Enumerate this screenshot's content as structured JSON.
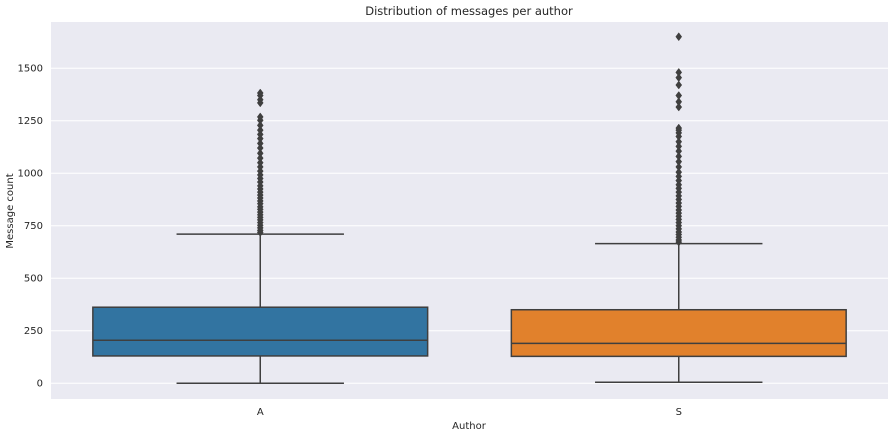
{
  "chart_data": {
    "type": "box",
    "title": "Distribution of messages per author",
    "xlabel": "Author",
    "ylabel": "Message count",
    "ylim": [
      -75,
      1720
    ],
    "yticks": [
      0,
      250,
      500,
      750,
      1000,
      1250,
      1500
    ],
    "grid": true,
    "categories": [
      "A",
      "S"
    ],
    "boxes": [
      {
        "category": "A",
        "color": "#3274a1",
        "whisker_low": 0,
        "q1": 130,
        "median": 205,
        "q3": 362,
        "whisker_high": 710,
        "outliers": [
          718,
          728,
          740,
          752,
          765,
          778,
          790,
          802,
          815,
          828,
          840,
          855,
          868,
          882,
          896,
          910,
          925,
          940,
          958,
          975,
          992,
          1010,
          1030,
          1050,
          1072,
          1095,
          1120,
          1142,
          1165,
          1185,
          1205,
          1228,
          1252,
          1268,
          1335,
          1350,
          1370,
          1382
        ]
      },
      {
        "category": "S",
        "color": "#e1812c",
        "whisker_low": 5,
        "q1": 128,
        "median": 190,
        "q3": 350,
        "whisker_high": 665,
        "outliers": [
          672,
          682,
          695,
          708,
          720,
          735,
          750,
          765,
          780,
          795,
          810,
          825,
          842,
          858,
          875,
          892,
          910,
          928,
          945,
          965,
          985,
          1005,
          1030,
          1055,
          1080,
          1105,
          1128,
          1150,
          1175,
          1192,
          1205,
          1215,
          1315,
          1340,
          1370,
          1420,
          1455,
          1480,
          1650
        ]
      }
    ]
  }
}
